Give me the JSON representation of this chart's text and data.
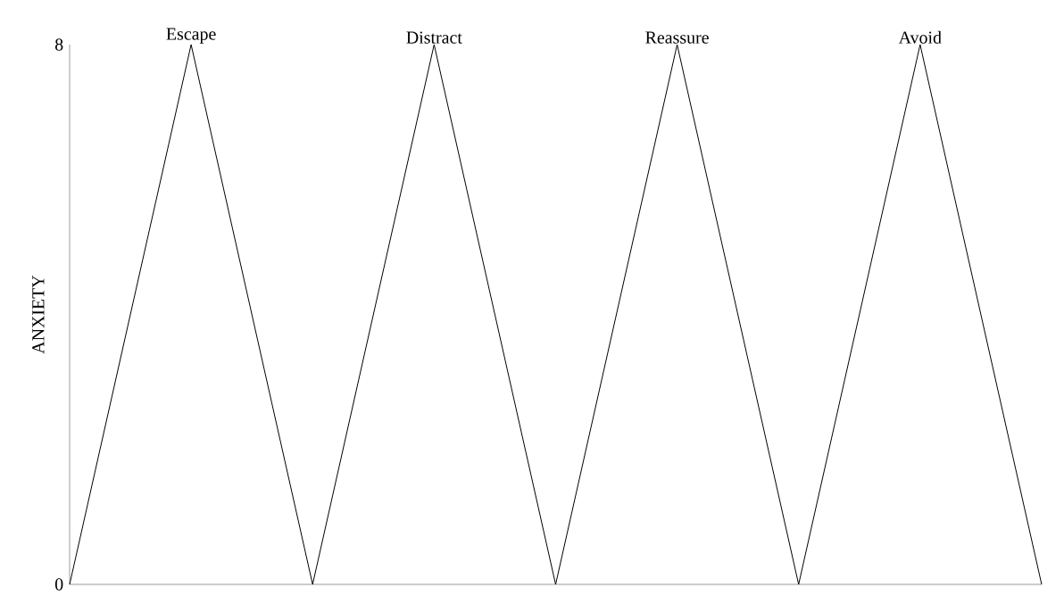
{
  "chart_data": {
    "type": "line",
    "categories": [
      null,
      null,
      null,
      null,
      null,
      null,
      null,
      null,
      null
    ],
    "values": [
      0,
      8,
      0,
      8,
      0,
      8,
      0,
      8,
      0
    ],
    "color": "#000000",
    "ylim": [
      0,
      8
    ],
    "yticks": [
      0,
      8
    ],
    "ylabel": "ANXIETY",
    "tick_labels": "y",
    "annotations": [
      "Escape",
      "Distract",
      "Reassure",
      "Avoid"
    ]
  }
}
